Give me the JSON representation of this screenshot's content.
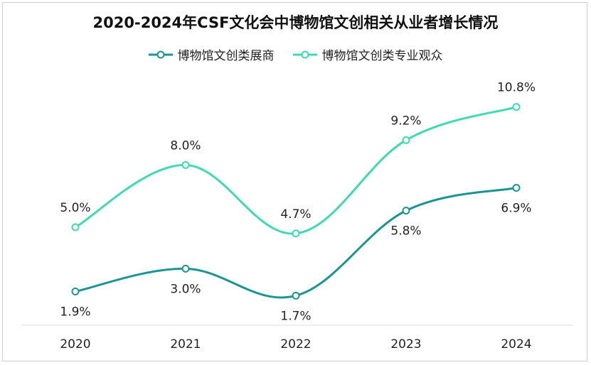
{
  "chart_data": {
    "type": "line",
    "title": "2020-2024年CSF文化会中博物馆文创相关从业者增长情况",
    "categories": [
      "2020",
      "2021",
      "2022",
      "2023",
      "2024"
    ],
    "series": [
      {
        "name": "博物馆文创类展商",
        "values": [
          1.9,
          3.0,
          1.7,
          5.8,
          6.9
        ],
        "labels": [
          "1.9%",
          "3.0%",
          "1.7%",
          "5.8%",
          "6.9%"
        ],
        "color": "#1a9590"
      },
      {
        "name": "博物馆文创类专业观众",
        "values": [
          5.0,
          8.0,
          4.7,
          9.2,
          10.8
        ],
        "labels": [
          "5.0%",
          "8.0%",
          "4.7%",
          "9.2%",
          "10.8%"
        ],
        "color": "#3ddbb0"
      }
    ],
    "grid": false,
    "legend": "top-center",
    "marker": "hollow-circle",
    "smooth": true
  }
}
